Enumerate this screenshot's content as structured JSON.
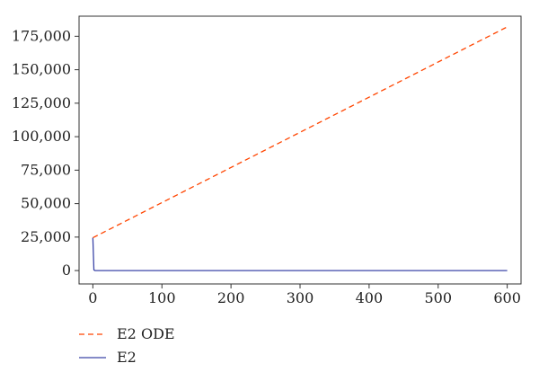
{
  "chart_data": {
    "type": "line",
    "title": "",
    "xlabel": "",
    "ylabel": "",
    "xlim": [
      -20,
      620
    ],
    "ylim": [
      -10000,
      190000
    ],
    "x_ticks": [
      0,
      100,
      200,
      300,
      400,
      500,
      600
    ],
    "x_tick_labels": [
      "0",
      "100",
      "200",
      "300",
      "400",
      "500",
      "600"
    ],
    "y_ticks": [
      0,
      25000,
      50000,
      75000,
      100000,
      125000,
      150000,
      175000
    ],
    "y_tick_labels": [
      "0",
      "25,000",
      "50,000",
      "75,000",
      "100,000",
      "125,000",
      "150,000",
      "175,000"
    ],
    "grid": false,
    "legend": "below",
    "series": [
      {
        "name": "E2 ODE",
        "color": "#ff4500",
        "dash": "dashed",
        "points": [
          [
            0,
            24500
          ],
          [
            600,
            182000
          ]
        ]
      },
      {
        "name": "E2",
        "color": "#3c46a8",
        "dash": "solid",
        "points": [
          [
            0,
            24500
          ],
          [
            1.5,
            500
          ],
          [
            3,
            0
          ],
          [
            600,
            0
          ]
        ]
      }
    ]
  }
}
